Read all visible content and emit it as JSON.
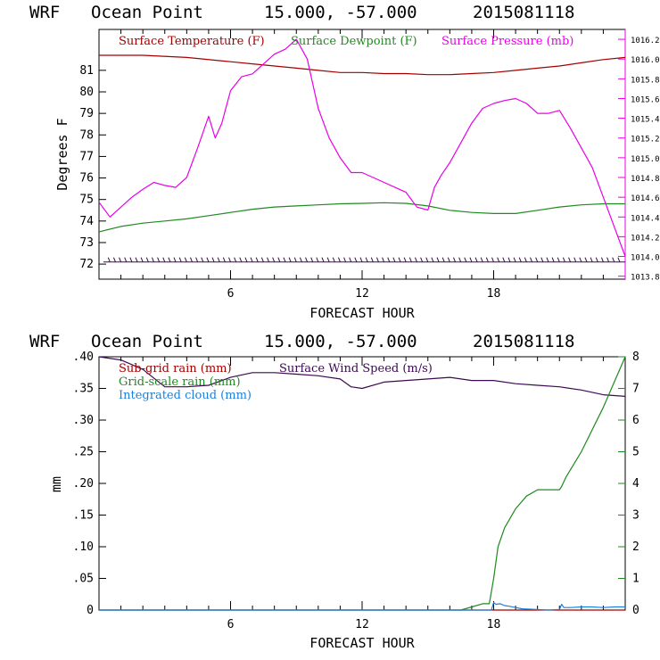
{
  "chart_data": [
    {
      "type": "line",
      "header": {
        "model": "WRF",
        "location": "Ocean Point",
        "coords": "15.000, -57.000",
        "date": "2015081118"
      },
      "xlabel": "FORECAST HOUR",
      "ylabel": "Degrees F",
      "xlim": [
        0,
        24
      ],
      "ylim": [
        71.3,
        82.9
      ],
      "y2lim": [
        1013.77,
        1016.3
      ],
      "xticks": [
        "6",
        "12",
        "18"
      ],
      "yticks": [
        "72",
        "73",
        "74",
        "75",
        "76",
        "77",
        "78",
        "79",
        "80",
        "81"
      ],
      "y2ticks": [
        "1013.8",
        "1014.0",
        "1014.2",
        "1014.4",
        "1014.6",
        "1014.8",
        "1015.0",
        "1015.2",
        "1015.4",
        "1015.6",
        "1015.8",
        "1016.0",
        "1016.2"
      ],
      "wind_barb_level": 72.1,
      "series": [
        {
          "name": "Surface Temperature (F)",
          "color": "#a30000",
          "axis": "left",
          "x": [
            0,
            2,
            4,
            6,
            7,
            8,
            9,
            10,
            11,
            12,
            13,
            14,
            15,
            16,
            17,
            18,
            19,
            20,
            21,
            22,
            23,
            24
          ],
          "y": [
            81.7,
            81.7,
            81.6,
            81.4,
            81.3,
            81.2,
            81.1,
            81.0,
            80.9,
            80.9,
            80.85,
            80.85,
            80.8,
            80.8,
            80.85,
            80.9,
            81.0,
            81.1,
            81.2,
            81.35,
            81.5,
            81.6
          ]
        },
        {
          "name": "Surface Dewpoint (F)",
          "color": "#1f8a1f",
          "axis": "left",
          "x": [
            0,
            1,
            2,
            3,
            4,
            5,
            6,
            7,
            8,
            9,
            10,
            11,
            12,
            13,
            14,
            15,
            16,
            17,
            18,
            19,
            20,
            21,
            22,
            23,
            24
          ],
          "y": [
            73.5,
            73.75,
            73.9,
            74.0,
            74.1,
            74.25,
            74.4,
            74.55,
            74.65,
            74.7,
            74.75,
            74.8,
            74.82,
            74.85,
            74.82,
            74.7,
            74.5,
            74.4,
            74.35,
            74.35,
            74.5,
            74.65,
            74.75,
            74.8,
            74.8
          ]
        },
        {
          "name": "Surface Pressure (mb)",
          "color": "#e800e8",
          "axis": "right",
          "x": [
            0,
            0.5,
            1,
            1.5,
            2,
            2.5,
            3,
            3.5,
            4,
            4.5,
            5,
            5.3,
            5.6,
            6,
            6.5,
            7,
            7.5,
            8,
            8.5,
            9,
            9.5,
            10,
            10.5,
            11,
            11.5,
            12,
            12.5,
            13,
            13.5,
            14,
            14.5,
            15,
            15.3,
            15.6,
            16,
            16.5,
            17,
            17.5,
            18,
            18.5,
            19,
            19.5,
            20,
            20.5,
            21,
            21.5,
            22,
            22.5,
            23,
            23.5,
            24
          ],
          "y": [
            1014.55,
            1014.4,
            1014.5,
            1014.6,
            1014.68,
            1014.75,
            1014.72,
            1014.7,
            1014.8,
            1015.1,
            1015.42,
            1015.2,
            1015.35,
            1015.68,
            1015.82,
            1015.85,
            1015.95,
            1016.05,
            1016.1,
            1016.2,
            1016.0,
            1015.5,
            1015.2,
            1015.0,
            1014.85,
            1014.85,
            1014.8,
            1014.75,
            1014.7,
            1014.65,
            1014.5,
            1014.47,
            1014.7,
            1014.82,
            1014.95,
            1015.15,
            1015.35,
            1015.5,
            1015.55,
            1015.58,
            1015.6,
            1015.55,
            1015.45,
            1015.45,
            1015.48,
            1015.3,
            1015.1,
            1014.9,
            1014.6,
            1014.3,
            1014.0
          ]
        }
      ]
    },
    {
      "type": "line",
      "header": {
        "model": "WRF",
        "location": "Ocean Point",
        "coords": "15.000, -57.000",
        "date": "2015081118"
      },
      "xlabel": "FORECAST HOUR",
      "ylabel": "mm",
      "xlim": [
        0,
        24
      ],
      "ylim": [
        0,
        0.4
      ],
      "y2lim": [
        0,
        8
      ],
      "xticks": [
        "6",
        "12",
        "18"
      ],
      "yticks": [
        "0",
        ".05",
        ".10",
        ".15",
        ".20",
        ".25",
        ".30",
        ".35",
        ".40"
      ],
      "y2ticks": [
        "0",
        "1",
        "2",
        "3",
        "4",
        "5",
        "6",
        "7",
        "8"
      ],
      "series": [
        {
          "name": "Sub-grid rain (mm)",
          "color": "#a30000",
          "axis": "left",
          "x": [
            0,
            24
          ],
          "y": [
            0,
            0
          ]
        },
        {
          "name": "Surface Wind Speed (m/s)",
          "color": "#3b0a52",
          "axis": "right",
          "x": [
            0,
            1,
            2,
            3,
            4,
            5,
            6,
            7,
            8,
            9,
            10,
            11,
            11.5,
            12,
            13,
            14,
            15,
            16,
            17,
            18,
            19,
            20,
            21,
            22,
            23,
            24
          ],
          "y": [
            8.0,
            7.9,
            7.6,
            7.05,
            7.05,
            7.1,
            7.35,
            7.5,
            7.5,
            7.45,
            7.4,
            7.3,
            7.05,
            7.0,
            7.2,
            7.25,
            7.3,
            7.35,
            7.25,
            7.25,
            7.15,
            7.1,
            7.05,
            6.95,
            6.8,
            6.75
          ]
        },
        {
          "name": "Grid-scale rain (mm)",
          "color": "#1f8a1f",
          "axis": "left",
          "x": [
            0,
            16.5,
            17,
            17.5,
            17.8,
            18,
            18.2,
            18.5,
            19,
            19.5,
            20,
            20.5,
            21,
            21.1,
            21.3,
            22,
            23,
            24
          ],
          "y": [
            0,
            0,
            0.005,
            0.01,
            0.01,
            0.05,
            0.1,
            0.13,
            0.16,
            0.18,
            0.19,
            0.19,
            0.19,
            0.195,
            0.21,
            0.25,
            0.32,
            0.4
          ]
        },
        {
          "name": "Integrated cloud (mm)",
          "color": "#1e7fd8",
          "axis": "left",
          "x": [
            0,
            17.9,
            18.0,
            18.1,
            18.3,
            18.5,
            18.7,
            19.0,
            19.3,
            20.5,
            21.0,
            21.1,
            21.2,
            21.5,
            22,
            22.5,
            23,
            23.5,
            24
          ],
          "y": [
            0,
            0,
            0.012,
            0.009,
            0.01,
            0.007,
            0.006,
            0.004,
            0.002,
            0,
            0.001,
            0.009,
            0.004,
            0.004,
            0.005,
            0.005,
            0.004,
            0.005,
            0.005
          ]
        }
      ]
    }
  ]
}
